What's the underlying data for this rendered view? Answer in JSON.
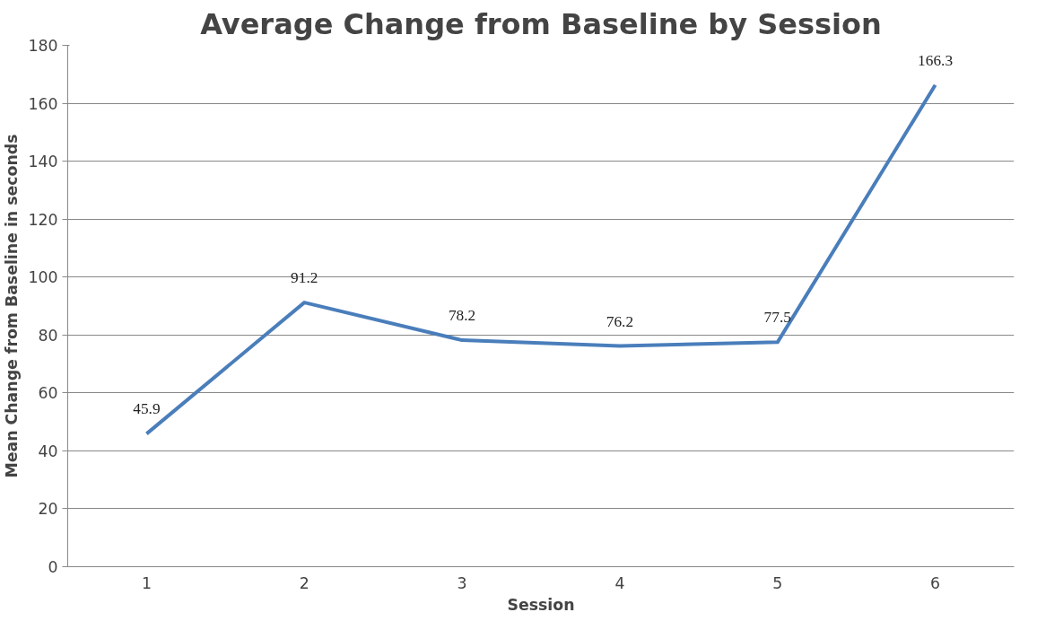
{
  "chart_data": {
    "type": "line",
    "title": "Average Change from Baseline by Session",
    "xlabel": "Session",
    "ylabel": "Mean Change from Baseline in seconds",
    "categories": [
      "1",
      "2",
      "3",
      "4",
      "5",
      "6"
    ],
    "series": [
      {
        "color": "#4a7ebb",
        "values": [
          45.9,
          91.2,
          78.2,
          76.2,
          77.5,
          166.3
        ]
      }
    ],
    "ylim": [
      0,
      180
    ],
    "yticks": [
      0,
      20,
      40,
      60,
      80,
      100,
      120,
      140,
      160,
      180
    ],
    "grid": "y",
    "data_labels": true,
    "marker": "none",
    "line_style": "solid"
  }
}
